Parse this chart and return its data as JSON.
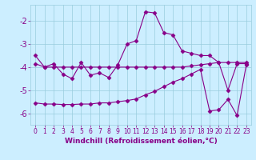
{
  "x": [
    0,
    1,
    2,
    3,
    4,
    5,
    6,
    7,
    8,
    9,
    10,
    11,
    12,
    13,
    14,
    15,
    16,
    17,
    18,
    19,
    20,
    21,
    22,
    23
  ],
  "line1": [
    -3.5,
    -4.0,
    -3.85,
    -4.3,
    -4.5,
    -3.8,
    -4.35,
    -4.25,
    -4.45,
    -3.9,
    -3.0,
    -2.85,
    -1.6,
    -1.65,
    -2.5,
    -2.6,
    -3.3,
    -3.4,
    -3.5,
    -3.5,
    -3.8,
    -5.0,
    -3.85,
    -3.85
  ],
  "line2": [
    -3.85,
    -4.0,
    -4.0,
    -4.0,
    -4.0,
    -4.0,
    -4.0,
    -4.0,
    -4.0,
    -4.0,
    -4.0,
    -4.0,
    -4.0,
    -4.0,
    -4.0,
    -4.0,
    -4.0,
    -3.95,
    -3.9,
    -3.85,
    -3.8,
    -3.8,
    -3.8,
    -3.8
  ],
  "line3": [
    -5.55,
    -5.6,
    -5.6,
    -5.62,
    -5.62,
    -5.6,
    -5.6,
    -5.55,
    -5.55,
    -5.5,
    -5.45,
    -5.38,
    -5.2,
    -5.05,
    -4.85,
    -4.65,
    -4.5,
    -4.3,
    -4.1,
    -5.9,
    -5.85,
    -5.4,
    -6.1,
    -3.9
  ],
  "color": "#880088",
  "bg_color": "#cceeff",
  "grid_color": "#99ccdd",
  "xlim": [
    -0.5,
    23.5
  ],
  "ylim": [
    -6.5,
    -1.3
  ],
  "yticks": [
    -6,
    -5,
    -4,
    -3,
    -2
  ],
  "xtick_labels": [
    "0",
    "1",
    "2",
    "3",
    "4",
    "5",
    "6",
    "7",
    "8",
    "9",
    "10",
    "11",
    "12",
    "13",
    "14",
    "15",
    "16",
    "17",
    "18",
    "19",
    "20",
    "21",
    "22",
    "23"
  ],
  "xlabel": "Windchill (Refroidissement éolien,°C)",
  "marker": "D",
  "markersize": 2.5,
  "linewidth": 0.8,
  "xlabel_fontsize": 6.5,
  "ytick_fontsize": 7,
  "xtick_fontsize": 5.5
}
